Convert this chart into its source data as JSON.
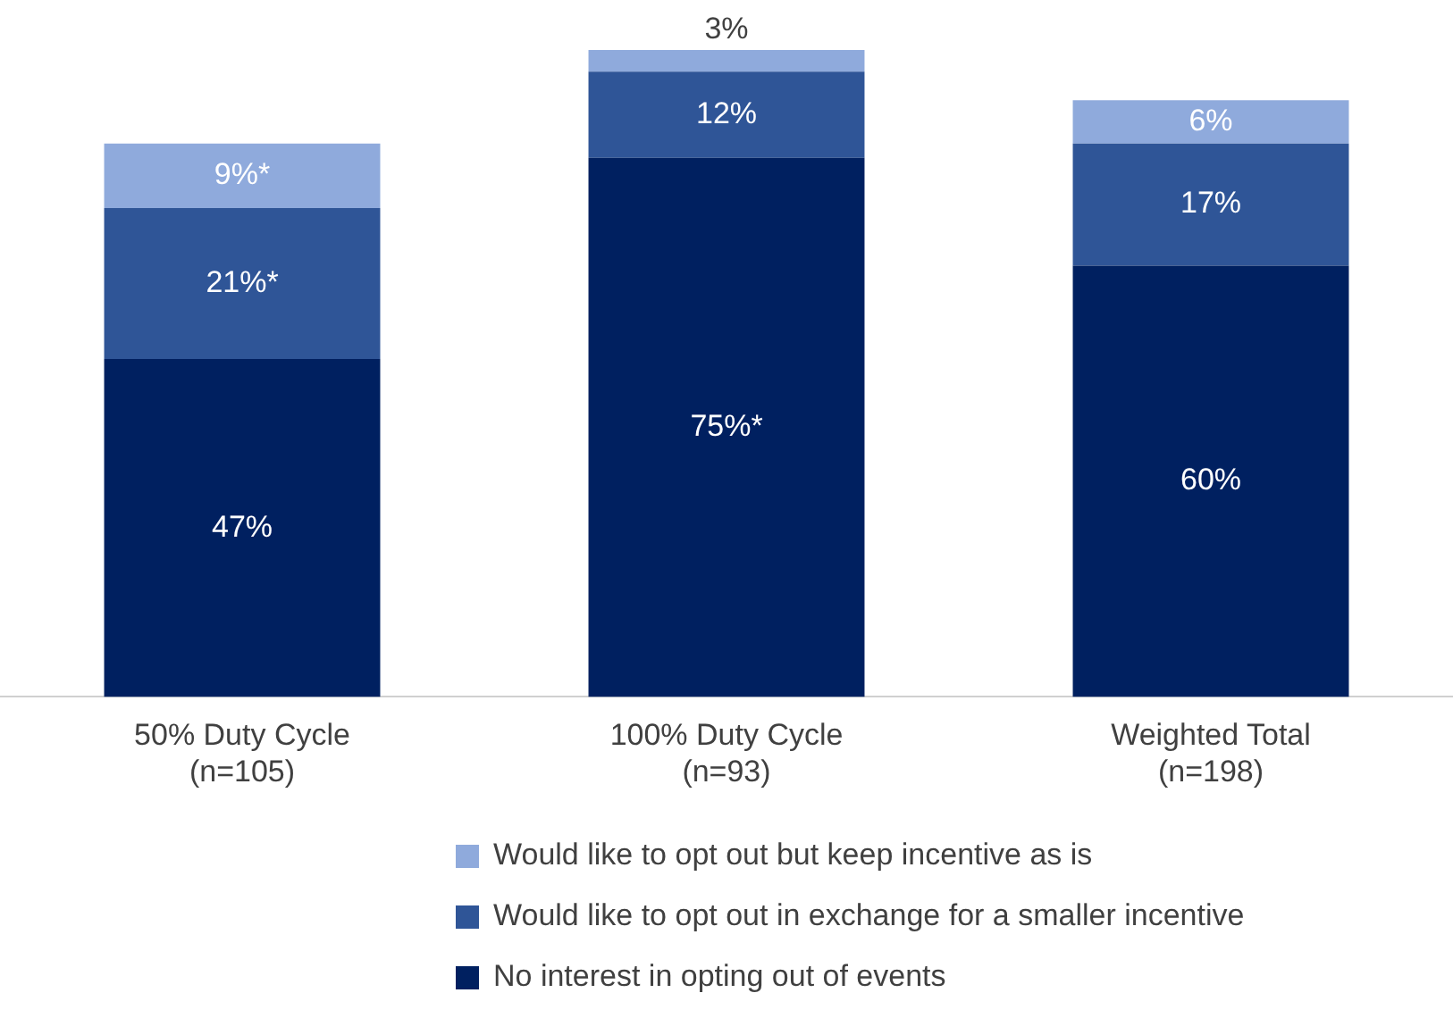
{
  "chart_data": {
    "type": "bar",
    "stacked": true,
    "categories": [
      "50% Duty Cycle\n(n=105)",
      "100% Duty Cycle\n(n=93)",
      "Weighted Total\n(n=198)"
    ],
    "series": [
      {
        "name": "No interest in opting out of events",
        "color": "#002060",
        "values": [
          47,
          75,
          60
        ],
        "value_labels": [
          "47%",
          "75%*",
          "60%"
        ]
      },
      {
        "name": "Would like to opt out in exchange for a smaller incentive",
        "color": "#2f5597",
        "values": [
          21,
          12,
          17
        ],
        "value_labels": [
          "21%*",
          "12%",
          "17%"
        ]
      },
      {
        "name": "Would like to opt out but keep incentive as is",
        "color": "#8faadc",
        "values": [
          9,
          3,
          6
        ],
        "value_labels": [
          "9%*",
          "3%",
          "6%"
        ]
      }
    ],
    "legend": "bottom",
    "tick_labels": "x",
    "grid": false
  }
}
